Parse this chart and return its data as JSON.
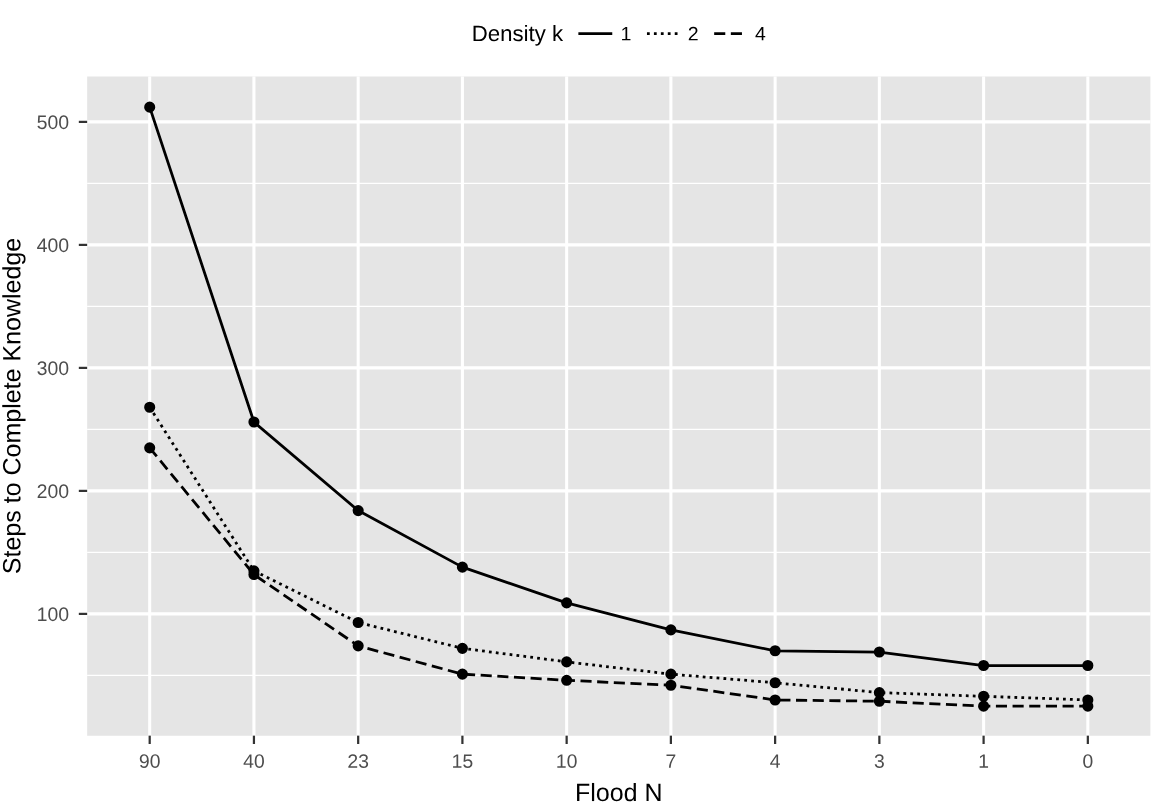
{
  "chart_data": {
    "type": "line",
    "xlabel": "Flood N",
    "ylabel": "Steps to Complete Knowledge",
    "legend_title": "Density k",
    "legend": "top",
    "categories": [
      "90",
      "40",
      "23",
      "15",
      "10",
      "7",
      "4",
      "3",
      "1",
      "0"
    ],
    "series": [
      {
        "name": "1",
        "color": "#000000",
        "line_style": "solid",
        "values": [
          512,
          256,
          184,
          138,
          109,
          87,
          70,
          69,
          58,
          58
        ]
      },
      {
        "name": "2",
        "color": "#000000",
        "line_style": "dotted",
        "values": [
          268,
          135,
          93,
          72,
          61,
          51,
          44,
          36,
          33,
          30
        ]
      },
      {
        "name": "4",
        "color": "#000000",
        "line_style": "dashed",
        "values": [
          235,
          132,
          74,
          51,
          46,
          42,
          30,
          29,
          25,
          25
        ]
      }
    ],
    "marker": "circle",
    "grid": true,
    "ylim": [
      1,
      537
    ],
    "yticks": [
      100,
      200,
      300,
      400,
      500
    ]
  }
}
